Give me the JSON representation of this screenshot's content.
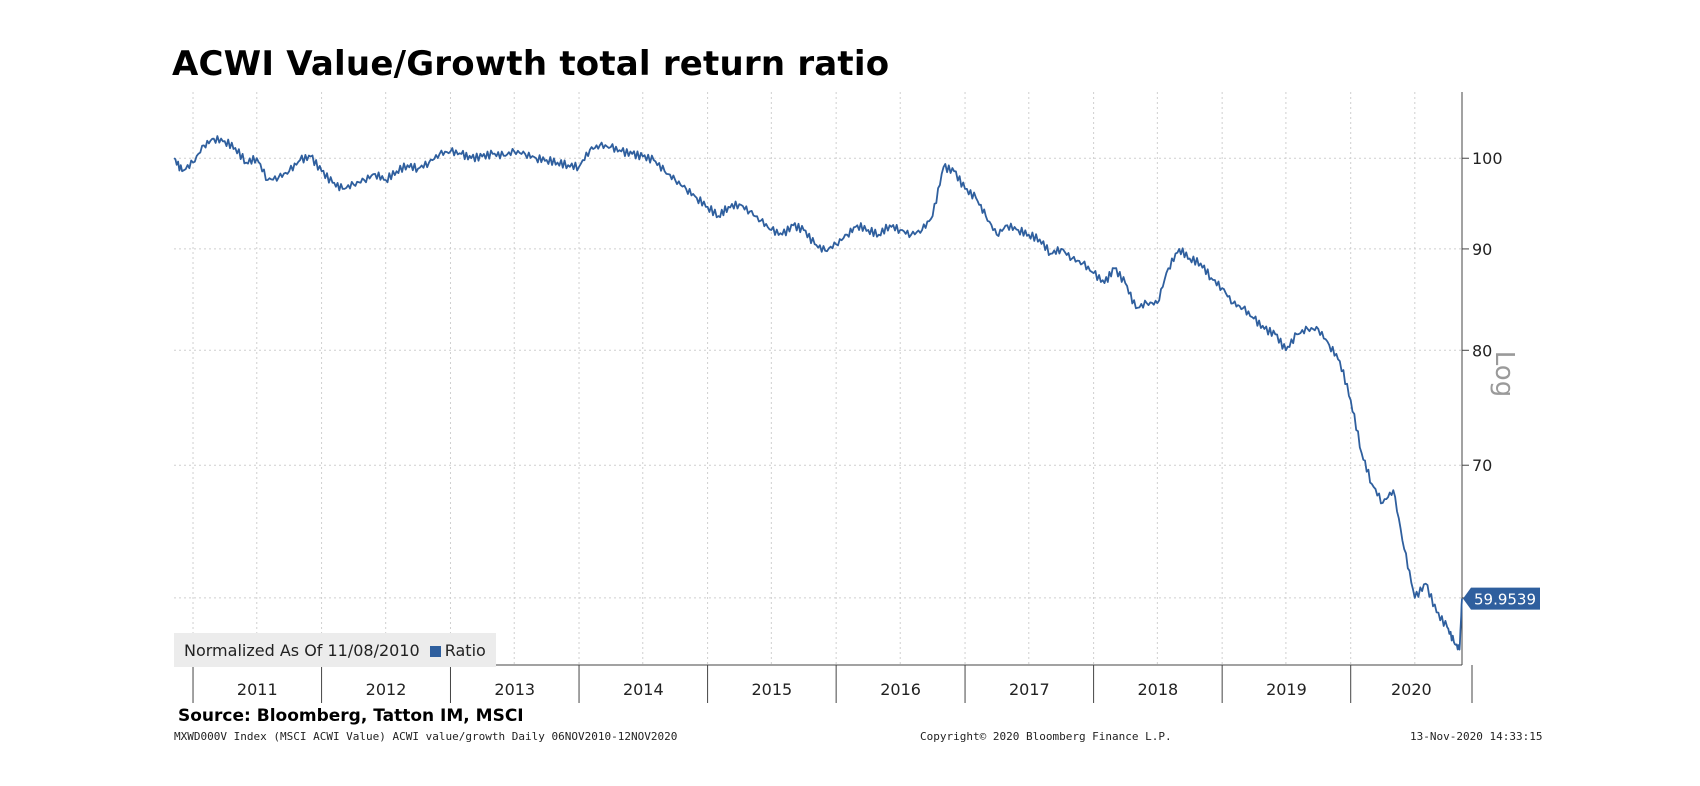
{
  "title": "ACWI Value/Growth total return ratio",
  "source": "Source: Bloomberg, Tatton IM, MSCI",
  "footer": {
    "left": "MXWD000V Index (MSCI ACWI Value) ACWI value/growth  Daily 06NOV2010-12NOV2020",
    "middle": "Copyright© 2020 Bloomberg Finance L.P.",
    "right": "13-Nov-2020 14:33:15"
  },
  "legend": {
    "normalized_label": "Normalized As Of 11/08/2010",
    "series_label": "Ratio"
  },
  "colors": {
    "series": "#2f5f9e",
    "grid": "#cfcfcf",
    "axis": "#444444",
    "scale_label": "#9a9a9a"
  },
  "chart_data": {
    "type": "line",
    "title": "ACWI Value/Growth total return ratio",
    "xlabel": "",
    "ylabel": "",
    "y_scale": "log",
    "scale_label": "Log",
    "grid": true,
    "legend_position": "bottom-left",
    "x_tick_labels": [
      "2011",
      "2012",
      "2013",
      "2014",
      "2015",
      "2016",
      "2017",
      "2018",
      "2019",
      "2020"
    ],
    "y_ticks": [
      100,
      90,
      80,
      70
    ],
    "ylim": [
      55.5,
      108
    ],
    "xlim": [
      "2010-11-08",
      "2020-11-12"
    ],
    "last_value_label": "59.9539",
    "series": [
      {
        "name": "Ratio",
        "x": [
          "2010-11-08",
          "2010-12-01",
          "2011-01-01",
          "2011-02-01",
          "2011-03-01",
          "2011-04-01",
          "2011-05-01",
          "2011-06-01",
          "2011-07-01",
          "2011-08-01",
          "2011-09-01",
          "2011-10-01",
          "2011-11-01",
          "2011-12-01",
          "2012-01-01",
          "2012-02-01",
          "2012-03-01",
          "2012-04-01",
          "2012-05-01",
          "2012-06-01",
          "2012-07-01",
          "2012-08-01",
          "2012-09-01",
          "2012-10-01",
          "2012-11-01",
          "2012-12-01",
          "2013-01-01",
          "2013-02-01",
          "2013-03-01",
          "2013-04-01",
          "2013-05-01",
          "2013-06-01",
          "2013-07-01",
          "2013-08-01",
          "2013-09-01",
          "2013-10-01",
          "2013-11-01",
          "2013-12-01",
          "2014-01-01",
          "2014-02-01",
          "2014-03-01",
          "2014-04-01",
          "2014-05-01",
          "2014-06-01",
          "2014-07-01",
          "2014-08-01",
          "2014-09-01",
          "2014-10-01",
          "2014-11-01",
          "2014-12-01",
          "2015-01-01",
          "2015-02-01",
          "2015-03-01",
          "2015-04-01",
          "2015-05-01",
          "2015-06-01",
          "2015-07-01",
          "2015-08-01",
          "2015-09-01",
          "2015-10-01",
          "2015-11-01",
          "2015-12-01",
          "2016-01-01",
          "2016-02-01",
          "2016-03-01",
          "2016-04-01",
          "2016-05-01",
          "2016-06-01",
          "2016-07-01",
          "2016-08-01",
          "2016-09-01",
          "2016-10-01",
          "2016-11-01",
          "2016-12-01",
          "2017-01-01",
          "2017-02-01",
          "2017-03-01",
          "2017-04-01",
          "2017-05-01",
          "2017-06-01",
          "2017-07-01",
          "2017-08-01",
          "2017-09-01",
          "2017-10-01",
          "2017-11-01",
          "2017-12-01",
          "2018-01-01",
          "2018-02-01",
          "2018-03-01",
          "2018-04-01",
          "2018-05-01",
          "2018-06-01",
          "2018-07-01",
          "2018-08-01",
          "2018-09-01",
          "2018-10-01",
          "2018-11-01",
          "2018-12-01",
          "2019-01-01",
          "2019-02-01",
          "2019-03-01",
          "2019-04-01",
          "2019-05-01",
          "2019-06-01",
          "2019-07-01",
          "2019-08-01",
          "2019-09-01",
          "2019-10-01",
          "2019-11-01",
          "2019-12-01",
          "2020-01-01",
          "2020-02-01",
          "2020-03-01",
          "2020-04-01",
          "2020-05-01",
          "2020-06-01",
          "2020-07-01",
          "2020-08-01",
          "2020-09-01",
          "2020-10-01",
          "2020-10-20",
          "2020-11-05",
          "2020-11-12"
        ],
        "values": [
          100.0,
          98.5,
          99.5,
          101.5,
          102.3,
          102.0,
          101.2,
          99.5,
          100.0,
          97.5,
          97.8,
          98.5,
          99.8,
          100.2,
          98.5,
          97.2,
          96.5,
          97.0,
          97.5,
          98.2,
          97.5,
          98.5,
          99.2,
          98.8,
          99.5,
          100.5,
          100.8,
          100.5,
          100.0,
          100.2,
          100.5,
          100.3,
          100.8,
          100.5,
          100.0,
          99.8,
          99.5,
          99.2,
          99.0,
          101.0,
          101.5,
          101.3,
          100.8,
          100.5,
          100.2,
          99.8,
          98.5,
          97.5,
          96.5,
          95.5,
          94.5,
          93.5,
          94.5,
          94.8,
          94.0,
          93.0,
          92.0,
          91.5,
          92.5,
          92.0,
          90.5,
          89.8,
          90.5,
          91.5,
          92.5,
          92.0,
          91.5,
          92.5,
          92.0,
          91.5,
          92.0,
          93.5,
          99.0,
          98.5,
          96.5,
          95.5,
          93.5,
          91.5,
          92.5,
          92.0,
          91.5,
          91.0,
          89.5,
          90.0,
          89.0,
          88.5,
          87.5,
          86.5,
          88.0,
          86.5,
          84.0,
          84.5,
          84.5,
          88.0,
          90.0,
          89.0,
          88.5,
          87.0,
          86.0,
          84.5,
          84.0,
          83.0,
          82.0,
          81.5,
          80.0,
          81.5,
          82.0,
          82.0,
          80.5,
          79.0,
          75.5,
          71.0,
          68.5,
          67.0,
          68.0,
          63.5,
          60.0,
          61.0,
          59.0,
          58.0,
          57.0,
          56.5,
          59.95
        ]
      }
    ]
  }
}
